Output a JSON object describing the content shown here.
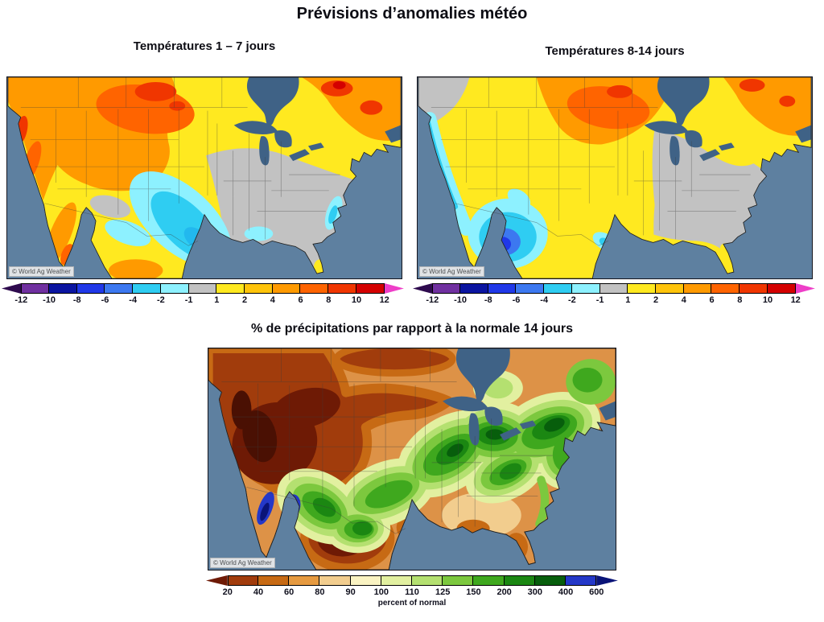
{
  "page": {
    "title": "Prévisions d’anomalies météo"
  },
  "panels": {
    "temp17": {
      "title": "Températures 1 – 7 jours",
      "watermark": "© World Ag Weather"
    },
    "temp814": {
      "title": "Températures 8-14 jours",
      "watermark": "© World Ag Weather"
    },
    "precip": {
      "title": "% de précipitations par rapport à la normale 14 jours",
      "watermark": "© World Ag Weather"
    }
  },
  "scales": {
    "temperature": {
      "ticks": [
        "-12",
        "-10",
        "-8",
        "-6",
        "-4",
        "-2",
        "-1",
        "1",
        "2",
        "4",
        "6",
        "8",
        "10",
        "12"
      ],
      "colors": [
        "#2e0a4e",
        "#7030a0",
        "#0a14a0",
        "#2038e8",
        "#3c78f0",
        "#2fcdf2",
        "#8df1ff",
        "#c2c2c2",
        "#ffe920",
        "#ffc40a",
        "#ff9a00",
        "#ff6400",
        "#f03600",
        "#d40000",
        "#ee3ec8"
      ]
    },
    "precipitation": {
      "ticks": [
        "20",
        "40",
        "60",
        "80",
        "90",
        "100",
        "110",
        "125",
        "150",
        "200",
        "300",
        "400",
        "600"
      ],
      "label": "percent of normal",
      "colors": [
        "#6e1a05",
        "#a13c0c",
        "#c76a14",
        "#e69a40",
        "#f2cd8e",
        "#faf3c2",
        "#e2f0a0",
        "#b4e070",
        "#7cc83e",
        "#3fa81e",
        "#1b8712",
        "#075e0c",
        "#2438c8",
        "#0a1478"
      ]
    }
  },
  "map_theme": {
    "ocean": "#5e80a0",
    "lakes": "#3f6286",
    "land_neutral": "#c2c2c2"
  }
}
